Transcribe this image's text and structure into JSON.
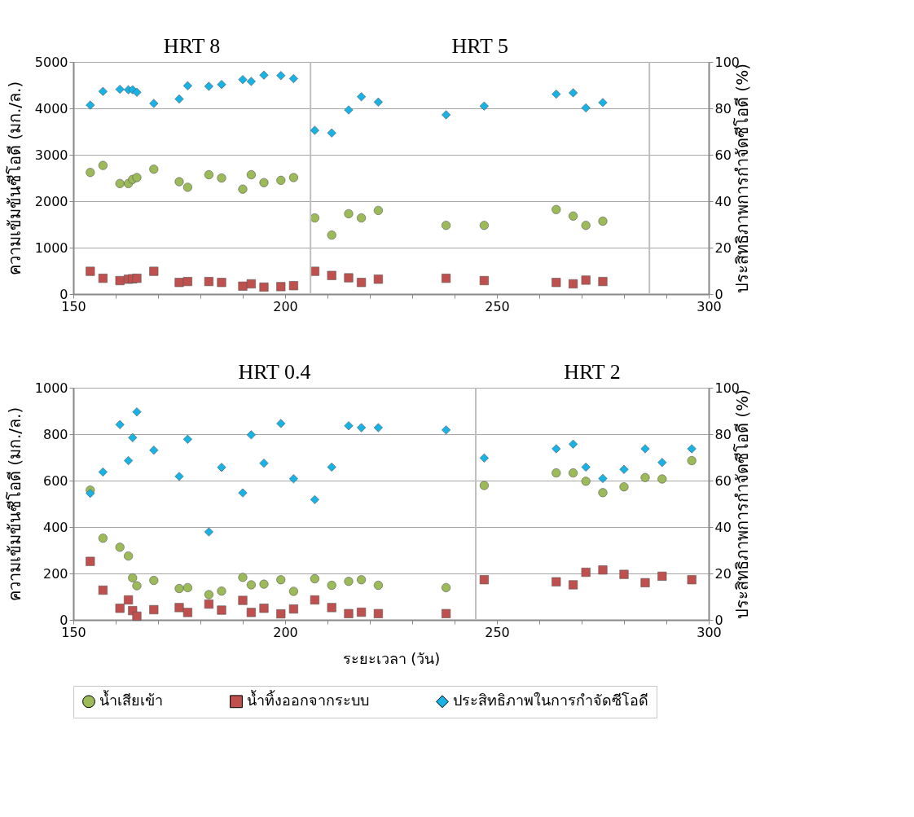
{
  "chart_data": [
    {
      "type": "scatter",
      "ylabel": "ความเข้มข้นซีโอดี (มก./ล.)",
      "y2label": "ประสิทธิภาพการกำจัดซีโอดี (%)",
      "xlim": [
        150,
        300
      ],
      "xticks": [
        150,
        {
          "value": 160,
          "label": null
        },
        {
          "value": 170,
          "label": null
        },
        {
          "value": 180,
          "label": null
        },
        {
          "value": 190,
          "label": null
        },
        200,
        {
          "value": 210,
          "label": null
        },
        {
          "value": 220,
          "label": null
        },
        {
          "value": 230,
          "label": null
        },
        {
          "value": 240,
          "label": null
        },
        250,
        {
          "value": 260,
          "label": null
        },
        {
          "value": 270,
          "label": null
        },
        {
          "value": 280,
          "label": null
        },
        {
          "value": 290,
          "label": null
        },
        300
      ],
      "ylim": [
        0,
        5000
      ],
      "yticks": [
        0,
        1000,
        2000,
        3000,
        4000,
        5000
      ],
      "y2lim": [
        0,
        100
      ],
      "y2ticks": [
        0,
        20,
        40,
        60,
        80,
        100
      ],
      "grid": "y",
      "x": [
        154,
        157,
        161,
        163,
        164,
        165,
        169,
        175,
        177,
        182,
        185,
        190,
        192,
        195,
        199,
        202,
        207,
        211,
        215,
        218,
        222,
        238,
        247,
        264,
        268,
        271,
        275
      ],
      "series": [
        {
          "color": "#9bbb59",
          "marker": "circle",
          "values": [
            2620,
            2770,
            2380,
            2380,
            2470,
            2510,
            2690,
            2420,
            2300,
            2570,
            2500,
            2260,
            2570,
            2400,
            2450,
            2510,
            1640,
            1270,
            1730,
            1640,
            1800,
            1480,
            1480,
            1820,
            1680,
            1480,
            1570
          ]
        },
        {
          "color": "#c0504d",
          "marker": "square",
          "values": [
            490,
            340,
            290,
            320,
            330,
            340,
            490,
            250,
            270,
            270,
            250,
            170,
            220,
            150,
            160,
            180,
            490,
            400,
            350,
            250,
            320,
            340,
            290,
            250,
            220,
            300,
            270
          ]
        },
        {
          "color": "#17b3e6",
          "marker": "diamond",
          "axis": "y2",
          "values": [
            81.4,
            87.3,
            88.2,
            88,
            88,
            86.9,
            82.1,
            84,
            89.7,
            89.5,
            90.3,
            92.4,
            91.6,
            94.3,
            94.1,
            92.8,
            70.5,
            69.4,
            79.3,
            85,
            82.7,
            77.2,
            81,
            86.1,
            86.7,
            80.2,
            82.5
          ]
        }
      ],
      "ref_lines": [
        {
          "axis": "x",
          "value": 206,
          "color": "#bfbfbf"
        },
        {
          "axis": "x",
          "value": 286,
          "color": "#bfbfbf"
        }
      ],
      "annotations": [
        "HRT 8",
        "HRT 5"
      ]
    },
    {
      "type": "scatter",
      "ylabel": "ความเข้มข้นซีโอดี (มก./ล.)",
      "y2label": "ประสิทธิภาพการกำจัดซีโอดี (%)",
      "xlabel": "ระยะเวลา (วัน)",
      "xlim": [
        150,
        300
      ],
      "xticks": [
        150,
        {
          "value": 160,
          "label": null
        },
        {
          "value": 170,
          "label": null
        },
        {
          "value": 180,
          "label": null
        },
        {
          "value": 190,
          "label": null
        },
        200,
        {
          "value": 210,
          "label": null
        },
        {
          "value": 220,
          "label": null
        },
        {
          "value": 230,
          "label": null
        },
        {
          "value": 240,
          "label": null
        },
        250,
        {
          "value": 260,
          "label": null
        },
        {
          "value": 270,
          "label": null
        },
        {
          "value": 280,
          "label": null
        },
        {
          "value": 290,
          "label": null
        },
        300
      ],
      "ylim": [
        0,
        1000
      ],
      "yticks": [
        0,
        200,
        400,
        600,
        800,
        1000
      ],
      "y2lim": [
        0,
        100
      ],
      "y2ticks": [
        0,
        20,
        40,
        60,
        80,
        100
      ],
      "grid": "y",
      "legend": "bottom",
      "x": [
        154,
        157,
        161,
        163,
        164,
        165,
        169,
        175,
        177,
        182,
        185,
        190,
        192,
        195,
        199,
        202,
        207,
        211,
        215,
        218,
        222,
        238,
        247,
        264,
        268,
        271,
        275,
        280,
        285,
        289,
        296
      ],
      "series": [
        {
          "name": "น้ำเสียเข้า",
          "color": "#9bbb59",
          "marker": "circle",
          "values": [
            559,
            352,
            313,
            275,
            181,
            147,
            170,
            135,
            139,
            109,
            124,
            183,
            151,
            154,
            173,
            123,
            177,
            149,
            166,
            173,
            149,
            139,
            579,
            633,
            633,
            597,
            548,
            573,
            613,
            607,
            686
          ]
        },
        {
          "name": "น้ำทิ้งออกจากระบบ",
          "color": "#c0504d",
          "marker": "square",
          "values": [
            252,
            128,
            50,
            86,
            40,
            16,
            44,
            53,
            32,
            68,
            42,
            84,
            32,
            50,
            26,
            47,
            86,
            53,
            27,
            33,
            27,
            27,
            173,
            164,
            151,
            205,
            215,
            196,
            160,
            188,
            173
          ]
        },
        {
          "name": "ประสิทธิภาพในการกำจัดซีโอดี",
          "color": "#17b3e6",
          "marker": "diamond",
          "axis": "y2",
          "values": [
            54.5,
            63.7,
            84.1,
            68.6,
            78.5,
            89.6,
            73.1,
            61.8,
            77.8,
            37.9,
            65.7,
            54.7,
            79.7,
            67.5,
            84.6,
            60.8,
            51.8,
            65.8,
            83.6,
            82.8,
            82.8,
            81.8,
            69.7,
            73.7,
            75.7,
            65.8,
            60.9,
            64.8,
            73.7,
            67.8,
            73.7
          ]
        }
      ],
      "ref_lines": [
        {
          "axis": "x",
          "value": 245,
          "color": "#bfbfbf"
        }
      ],
      "annotations": [
        "HRT 0.4",
        "HRT 2"
      ]
    }
  ]
}
